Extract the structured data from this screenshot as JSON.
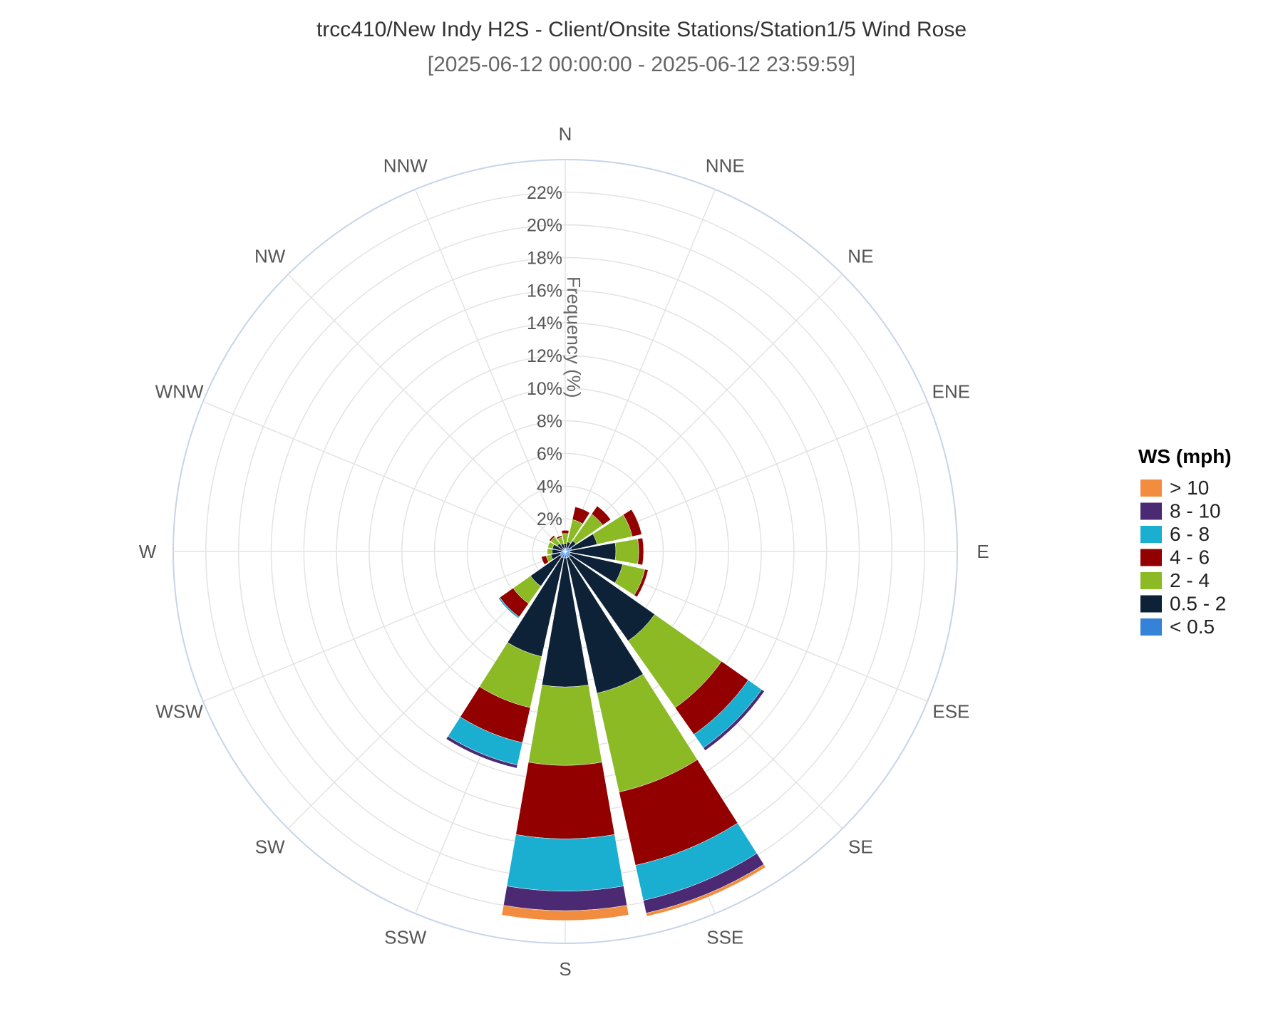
{
  "chart_data": {
    "type": "windrose",
    "title": "trcc410/New Indy H2S - Client/Onsite Stations/Station1/5 Wind Rose",
    "subtitle": "[2025-06-12 00:00:00 - 2025-06-12 23:59:59]",
    "radial_axis_label": "Frequency (%)",
    "radial_ticks": [
      "2%",
      "4%",
      "6%",
      "8%",
      "10%",
      "12%",
      "14%",
      "16%",
      "18%",
      "20%",
      "22%"
    ],
    "radial_tick_values": [
      2,
      4,
      6,
      8,
      10,
      12,
      14,
      16,
      18,
      20,
      22
    ],
    "rmax": 24,
    "directions": [
      "N",
      "NNE",
      "NE",
      "ENE",
      "E",
      "ESE",
      "SE",
      "SSE",
      "S",
      "SSW",
      "SW",
      "WSW",
      "W",
      "WNW",
      "NW",
      "NNW"
    ],
    "direction_labels": [
      "N",
      "NNE",
      "NE",
      "ENE",
      "E",
      "ESE",
      "SE",
      "SSE",
      "S",
      "SSW",
      "SW",
      "WSW",
      "W",
      "WNW",
      "NW",
      "NNW"
    ],
    "legend_title": "WS (mph)",
    "legend_position": "right",
    "grid": true,
    "series": [
      {
        "name": "< 0.5",
        "color": "#3582d9",
        "values": [
          0.2,
          0.2,
          0.3,
          0.4,
          0.3,
          0.3,
          0.4,
          0.4,
          0.4,
          0.4,
          0.4,
          0.3,
          0.2,
          0.2,
          0.2,
          0.2
        ]
      },
      {
        "name": "0.5 - 2",
        "color": "#0d2137",
        "values": [
          0.3,
          0.4,
          0.5,
          1.6,
          2.8,
          3.3,
          6.3,
          8.5,
          7.9,
          6.2,
          2.2,
          0.6,
          0.6,
          0.6,
          0.4,
          0.3
        ]
      },
      {
        "name": "2 - 4",
        "color": "#8bba24",
        "values": [
          0.6,
          1.4,
          2.0,
          2.2,
          1.4,
          1.4,
          5.0,
          6.2,
          4.8,
          3.2,
          1.3,
          0.3,
          0.3,
          0.3,
          0.5,
          0.4
        ]
      },
      {
        "name": "4 - 6",
        "color": "#930000",
        "values": [
          0.2,
          0.8,
          0.6,
          0.6,
          0.3,
          0.2,
          2.0,
          4.6,
          4.5,
          2.2,
          1.0,
          0.3,
          0.0,
          0.0,
          0.1,
          0.1
        ]
      },
      {
        "name": "6 - 8",
        "color": "#1aaed0",
        "values": [
          0.0,
          0.0,
          0.0,
          0.0,
          0.0,
          0.0,
          1.0,
          2.2,
          3.2,
          1.4,
          0.1,
          0.0,
          0.0,
          0.0,
          0.0,
          0.0
        ]
      },
      {
        "name": "8 - 10",
        "color": "#4b2a73",
        "values": [
          0.0,
          0.0,
          0.0,
          0.0,
          0.0,
          0.0,
          0.2,
          0.8,
          1.2,
          0.2,
          0.0,
          0.0,
          0.0,
          0.0,
          0.0,
          0.0
        ]
      },
      {
        "name": "> 10",
        "color": "#f28d3f",
        "values": [
          0.0,
          0.0,
          0.0,
          0.0,
          0.0,
          0.0,
          0.0,
          0.2,
          0.6,
          0.0,
          0.0,
          0.0,
          0.0,
          0.0,
          0.0,
          0.0
        ]
      }
    ]
  }
}
